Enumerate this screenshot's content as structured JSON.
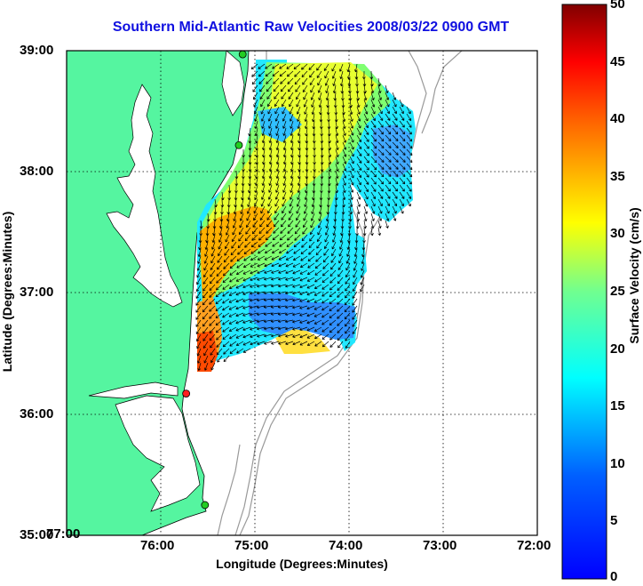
{
  "title": "Southern Mid-Atlantic Raw Velocities 2008/03/22 0900 GMT",
  "x_axis": {
    "label": "Longitude (Degrees:Minutes)",
    "ticks": [
      "77:00",
      "76:00",
      "75:00",
      "74:00",
      "73:00",
      "72:00"
    ]
  },
  "y_axis": {
    "label": "Latitude (Degrees:Minutes)",
    "ticks": [
      "39:00",
      "38:00",
      "37:00",
      "36:00",
      "35:00"
    ]
  },
  "colorbar": {
    "label": "Surface Velocity (cm/s)",
    "ticks": [
      "50",
      "45",
      "40",
      "35",
      "30",
      "25",
      "20",
      "15",
      "10",
      "5",
      "0"
    ],
    "range": [
      0,
      50
    ],
    "colormap": "jet"
  },
  "map": {
    "lon_range": [
      -77,
      -72
    ],
    "lat_range": [
      35,
      39
    ],
    "land_color": "#55f5a0",
    "grid": "dotted",
    "stations": [
      {
        "lon": -75.13,
        "lat": 38.97,
        "color": "#22cc22"
      },
      {
        "lon": -75.17,
        "lat": 38.22,
        "color": "#22cc22"
      },
      {
        "lon": -75.73,
        "lat": 36.17,
        "color": "#ff2020"
      },
      {
        "lon": -75.53,
        "lat": 35.25,
        "color": "#22cc22"
      }
    ]
  }
}
